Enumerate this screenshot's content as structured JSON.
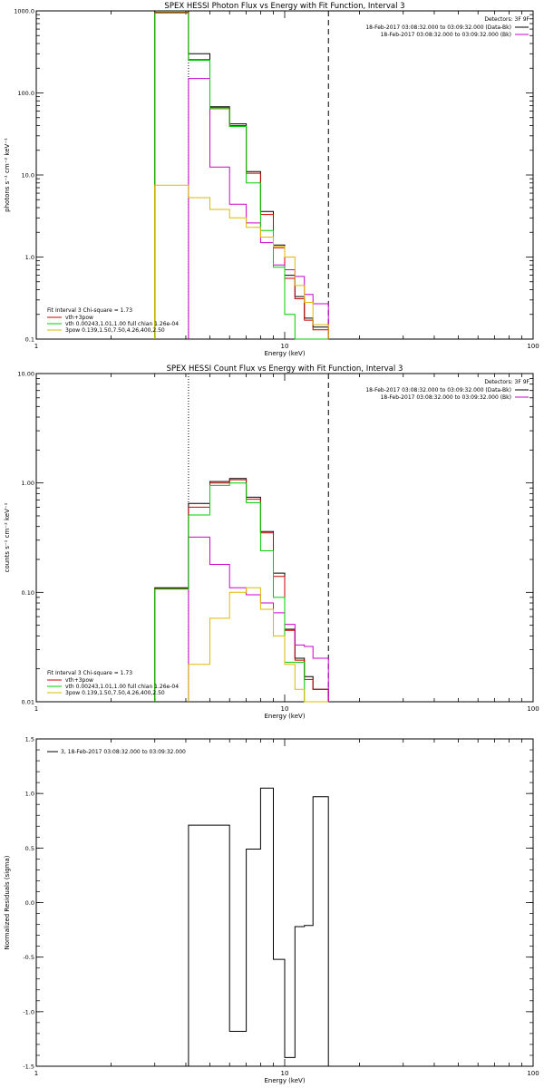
{
  "chart_data": [
    {
      "type": "line",
      "title": "SPEX HESSI Photon Flux vs Energy with Fit Function, Interval 3",
      "xlabel": "Energy (keV)",
      "ylabel": "photons s⁻¹ cm⁻² keV⁻¹",
      "xscale": "log",
      "yscale": "log",
      "xlim": [
        1,
        100
      ],
      "ylim": [
        0.1,
        1000
      ],
      "xticks": [
        1,
        10,
        100
      ],
      "xtick_labels": [
        "1",
        "10",
        "100"
      ],
      "yticks": [
        0.1,
        1,
        10,
        100,
        1000
      ],
      "ytick_labels": [
        "0.1",
        "1.0",
        "10.0",
        "100.0",
        "1000.0"
      ],
      "vlines": [
        {
          "x": 4.1,
          "style": "dotted"
        },
        {
          "x": 15.0,
          "style": "dashed"
        }
      ],
      "legend_top": {
        "header": "Detectors: 3F 9F",
        "lines": [
          {
            "text": "18-Feb-2017 03:08:32.000 to 03:09:32.000 (Data-Bk)",
            "color": "#000000"
          },
          {
            "text": "18-Feb-2017 03:08:32.000 to 03:09:32.000 (Bk)",
            "color": "#cc00cc"
          }
        ]
      },
      "legend_bottom": {
        "header": "Fit Interval 3   Chi-square = 1.73",
        "lines": [
          {
            "text": "vth+3pow",
            "color": "#cc0000"
          },
          {
            "text": "vth 0.00243,1.01,1.00  full chian 1.26e-04",
            "color": "#00cc00"
          },
          {
            "text": "3pow 0.139,1.50,7.50,4.26,400,2.50",
            "color": "#ddbb00"
          }
        ]
      },
      "bin_edges": [
        3.0,
        4.1,
        5.0,
        6.0,
        7.0,
        8.0,
        9.0,
        10.0,
        11.0,
        12.0,
        13.0,
        15.0
      ],
      "series": [
        {
          "color": "#000000",
          "values": [
            1000,
            300,
            68,
            42,
            11,
            3.6,
            1.4,
            0.6,
            0.33,
            0.18,
            0.14
          ]
        },
        {
          "color": "#cc0000",
          "values": [
            960,
            255,
            66,
            40,
            10.5,
            3.3,
            1.3,
            0.55,
            0.31,
            0.17,
            0.13
          ]
        },
        {
          "color": "#cc00cc",
          "values": [
            null,
            150,
            12.5,
            4.4,
            2.6,
            1.5,
            0.8,
            0.7,
            0.58,
            0.35,
            0.27
          ]
        },
        {
          "color": "#00cc00",
          "values": [
            940,
            250,
            64,
            39,
            8,
            2.1,
            0.75,
            0.2,
            0.1,
            0.1,
            0.1
          ]
        },
        {
          "color": "#ddbb00",
          "values": [
            7.5,
            5.3,
            3.8,
            3.0,
            2.3,
            1.75,
            1.35,
            1.0,
            0.45,
            0.28,
            0.15
          ]
        }
      ]
    },
    {
      "type": "line",
      "title": "SPEX HESSI Count Flux vs Energy with Fit Function, Interval 3",
      "xlabel": "Energy (keV)",
      "ylabel": "counts s⁻¹ cm⁻² keV⁻¹",
      "xscale": "log",
      "yscale": "log",
      "xlim": [
        1,
        100
      ],
      "ylim": [
        0.01,
        10
      ],
      "xticks": [
        1,
        10,
        100
      ],
      "xtick_labels": [
        "1",
        "10",
        "100"
      ],
      "yticks": [
        0.01,
        0.1,
        1,
        10
      ],
      "ytick_labels": [
        "0.01",
        "0.10",
        "1.00",
        "10.00"
      ],
      "vlines": [
        {
          "x": 4.1,
          "style": "dotted"
        },
        {
          "x": 15.0,
          "style": "dashed"
        }
      ],
      "legend_top": {
        "header": "Detectors: 3F 9F",
        "lines": [
          {
            "text": "18-Feb-2017 03:08:32.000 to 03:09:32.000 (Data-Bk)",
            "color": "#000000"
          },
          {
            "text": "18-Feb-2017 03:08:32.000 to 03:09:32.000 (Bk)",
            "color": "#cc00cc"
          }
        ]
      },
      "legend_bottom": {
        "header": "Fit Interval 3   Chi-square = 1.73",
        "lines": [
          {
            "text": "vth+3pow",
            "color": "#cc0000"
          },
          {
            "text": "vth 0.00243,1.01,1.00  full chian 1.26e-04",
            "color": "#00cc00"
          },
          {
            "text": "3pow 0.139,1.50,7.50,4.26,400,2.50",
            "color": "#ddbb00"
          }
        ]
      },
      "bin_edges": [
        3.0,
        4.1,
        5.0,
        6.0,
        7.0,
        8.0,
        9.0,
        10.0,
        11.0,
        12.0,
        13.0,
        15.0
      ],
      "series": [
        {
          "color": "#000000",
          "values": [
            0.11,
            0.65,
            1.03,
            1.1,
            0.74,
            0.36,
            0.15,
            0.046,
            0.025,
            0.017,
            0.013
          ]
        },
        {
          "color": "#cc0000",
          "values": [
            0.108,
            0.6,
            1.0,
            1.07,
            0.71,
            0.35,
            0.14,
            0.045,
            0.024,
            0.016,
            0.013
          ]
        },
        {
          "color": "#cc00cc",
          "values": [
            null,
            0.32,
            0.18,
            0.11,
            0.095,
            0.08,
            0.065,
            0.051,
            0.033,
            0.032,
            0.025
          ]
        },
        {
          "color": "#00cc00",
          "values": [
            0.107,
            0.51,
            0.95,
            1.0,
            0.66,
            0.24,
            0.09,
            0.023,
            0.023,
            0.01,
            0.01
          ]
        },
        {
          "color": "#ddbb00",
          "values": [
            null,
            0.022,
            0.058,
            0.1,
            0.11,
            0.07,
            0.04,
            0.022,
            0.013,
            0.01,
            0.01
          ]
        }
      ]
    },
    {
      "type": "line",
      "title": "",
      "xlabel": "Energy (keV)",
      "ylabel": "Normalized Residuals (sigma)",
      "xscale": "log",
      "yscale": "linear",
      "xlim": [
        1,
        100
      ],
      "ylim": [
        -1.5,
        1.5
      ],
      "xticks": [
        1,
        10,
        100
      ],
      "xtick_labels": [
        "1",
        "10",
        "100"
      ],
      "yticks": [
        -1.5,
        -1.0,
        -0.5,
        0.0,
        0.5,
        1.0,
        1.5
      ],
      "ytick_labels": [
        "-1.5",
        "-1.0",
        "-0.5",
        "0.0",
        "0.5",
        "1.0",
        "1.5"
      ],
      "legend": {
        "text": "3, 18-Feb-2017 03:08:32.000 to 03:09:32.000",
        "color": "#000000"
      },
      "bin_edges": [
        4.1,
        6.0,
        7.0,
        8.0,
        9.0,
        10.0,
        11.0,
        12.0,
        13.0,
        15.0
      ],
      "series": [
        {
          "color": "#000000",
          "values": [
            0.71,
            -1.18,
            0.49,
            1.05,
            -0.52,
            -1.42,
            -0.22,
            -0.21,
            0.97
          ]
        }
      ]
    }
  ]
}
